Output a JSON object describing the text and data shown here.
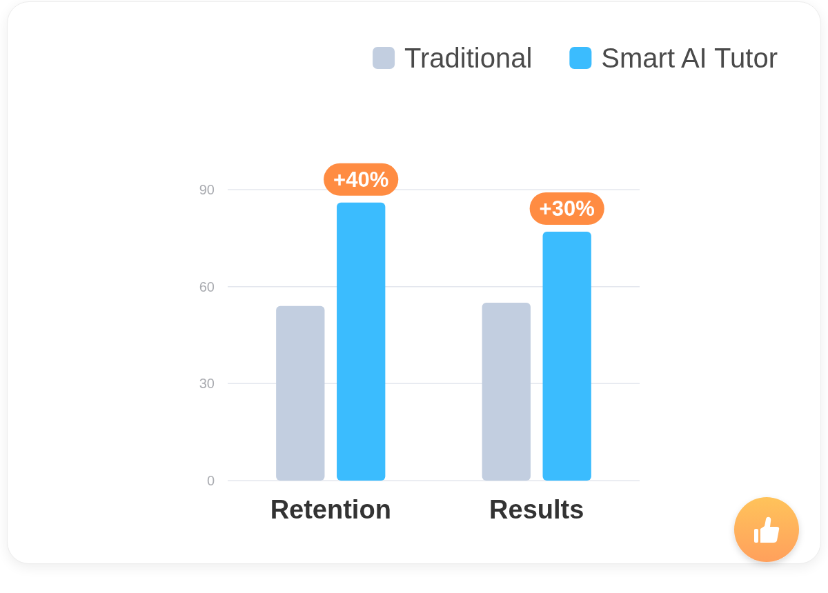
{
  "chart_data": {
    "type": "bar",
    "categories": [
      "Retention",
      "Results"
    ],
    "series": [
      {
        "name": "Traditional",
        "color": "#c2cee0",
        "values": [
          54,
          55
        ]
      },
      {
        "name": "Smart AI Tutor",
        "color": "#3bbcfe",
        "values": [
          86,
          77
        ]
      }
    ],
    "ylim": [
      0,
      90
    ],
    "yticks": [
      0,
      30,
      60,
      90
    ],
    "grid": "y",
    "legend": "top right",
    "annotations": [
      "+40%",
      "+30%"
    ]
  }
}
